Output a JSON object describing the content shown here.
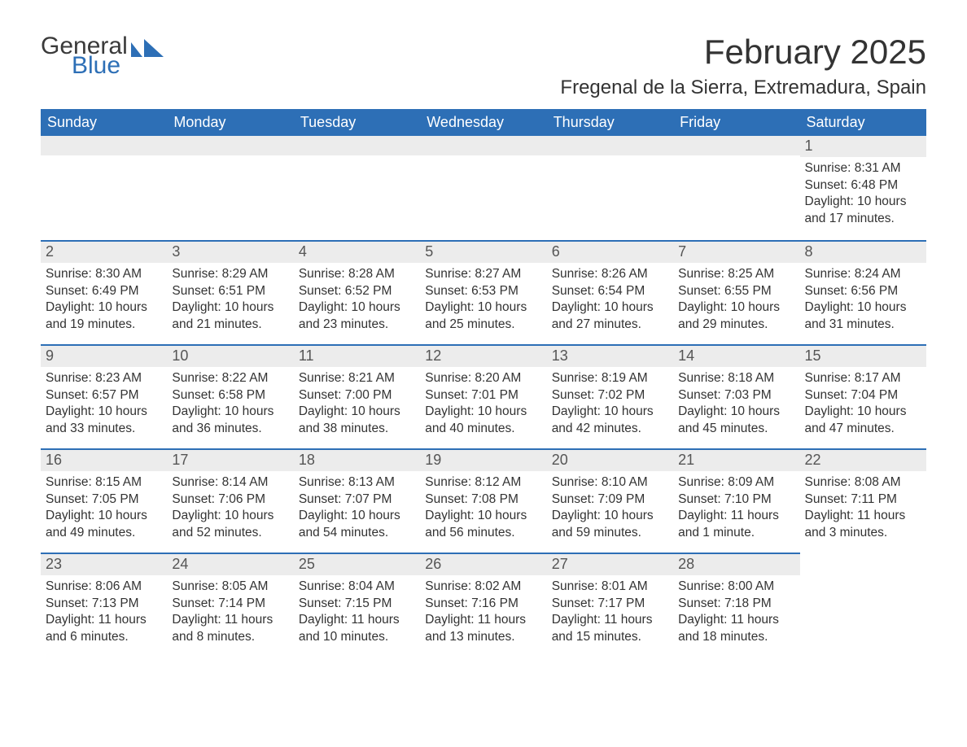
{
  "brand": {
    "text_general": "General",
    "text_blue": "Blue",
    "accent_color": "#2d6fb6"
  },
  "title": "February 2025",
  "location": "Fregenal de la Sierra, Extremadura, Spain",
  "colors": {
    "header_bg": "#2d6fb6",
    "header_text": "#ffffff",
    "daybar_bg": "#ececec",
    "daybar_border": "#2d6fb6",
    "body_text": "#333333",
    "daynum_text": "#555555"
  },
  "day_headers": [
    "Sunday",
    "Monday",
    "Tuesday",
    "Wednesday",
    "Thursday",
    "Friday",
    "Saturday"
  ],
  "weeks": [
    [
      null,
      null,
      null,
      null,
      null,
      null,
      {
        "n": "1",
        "sunrise": "8:31 AM",
        "sunset": "6:48 PM",
        "daylight": "10 hours and 17 minutes."
      }
    ],
    [
      {
        "n": "2",
        "sunrise": "8:30 AM",
        "sunset": "6:49 PM",
        "daylight": "10 hours and 19 minutes."
      },
      {
        "n": "3",
        "sunrise": "8:29 AM",
        "sunset": "6:51 PM",
        "daylight": "10 hours and 21 minutes."
      },
      {
        "n": "4",
        "sunrise": "8:28 AM",
        "sunset": "6:52 PM",
        "daylight": "10 hours and 23 minutes."
      },
      {
        "n": "5",
        "sunrise": "8:27 AM",
        "sunset": "6:53 PM",
        "daylight": "10 hours and 25 minutes."
      },
      {
        "n": "6",
        "sunrise": "8:26 AM",
        "sunset": "6:54 PM",
        "daylight": "10 hours and 27 minutes."
      },
      {
        "n": "7",
        "sunrise": "8:25 AM",
        "sunset": "6:55 PM",
        "daylight": "10 hours and 29 minutes."
      },
      {
        "n": "8",
        "sunrise": "8:24 AM",
        "sunset": "6:56 PM",
        "daylight": "10 hours and 31 minutes."
      }
    ],
    [
      {
        "n": "9",
        "sunrise": "8:23 AM",
        "sunset": "6:57 PM",
        "daylight": "10 hours and 33 minutes."
      },
      {
        "n": "10",
        "sunrise": "8:22 AM",
        "sunset": "6:58 PM",
        "daylight": "10 hours and 36 minutes."
      },
      {
        "n": "11",
        "sunrise": "8:21 AM",
        "sunset": "7:00 PM",
        "daylight": "10 hours and 38 minutes."
      },
      {
        "n": "12",
        "sunrise": "8:20 AM",
        "sunset": "7:01 PM",
        "daylight": "10 hours and 40 minutes."
      },
      {
        "n": "13",
        "sunrise": "8:19 AM",
        "sunset": "7:02 PM",
        "daylight": "10 hours and 42 minutes."
      },
      {
        "n": "14",
        "sunrise": "8:18 AM",
        "sunset": "7:03 PM",
        "daylight": "10 hours and 45 minutes."
      },
      {
        "n": "15",
        "sunrise": "8:17 AM",
        "sunset": "7:04 PM",
        "daylight": "10 hours and 47 minutes."
      }
    ],
    [
      {
        "n": "16",
        "sunrise": "8:15 AM",
        "sunset": "7:05 PM",
        "daylight": "10 hours and 49 minutes."
      },
      {
        "n": "17",
        "sunrise": "8:14 AM",
        "sunset": "7:06 PM",
        "daylight": "10 hours and 52 minutes."
      },
      {
        "n": "18",
        "sunrise": "8:13 AM",
        "sunset": "7:07 PM",
        "daylight": "10 hours and 54 minutes."
      },
      {
        "n": "19",
        "sunrise": "8:12 AM",
        "sunset": "7:08 PM",
        "daylight": "10 hours and 56 minutes."
      },
      {
        "n": "20",
        "sunrise": "8:10 AM",
        "sunset": "7:09 PM",
        "daylight": "10 hours and 59 minutes."
      },
      {
        "n": "21",
        "sunrise": "8:09 AM",
        "sunset": "7:10 PM",
        "daylight": "11 hours and 1 minute."
      },
      {
        "n": "22",
        "sunrise": "8:08 AM",
        "sunset": "7:11 PM",
        "daylight": "11 hours and 3 minutes."
      }
    ],
    [
      {
        "n": "23",
        "sunrise": "8:06 AM",
        "sunset": "7:13 PM",
        "daylight": "11 hours and 6 minutes."
      },
      {
        "n": "24",
        "sunrise": "8:05 AM",
        "sunset": "7:14 PM",
        "daylight": "11 hours and 8 minutes."
      },
      {
        "n": "25",
        "sunrise": "8:04 AM",
        "sunset": "7:15 PM",
        "daylight": "11 hours and 10 minutes."
      },
      {
        "n": "26",
        "sunrise": "8:02 AM",
        "sunset": "7:16 PM",
        "daylight": "11 hours and 13 minutes."
      },
      {
        "n": "27",
        "sunrise": "8:01 AM",
        "sunset": "7:17 PM",
        "daylight": "11 hours and 15 minutes."
      },
      {
        "n": "28",
        "sunrise": "8:00 AM",
        "sunset": "7:18 PM",
        "daylight": "11 hours and 18 minutes."
      },
      null
    ]
  ],
  "labels": {
    "sunrise": "Sunrise: ",
    "sunset": "Sunset: ",
    "daylight": "Daylight: "
  }
}
